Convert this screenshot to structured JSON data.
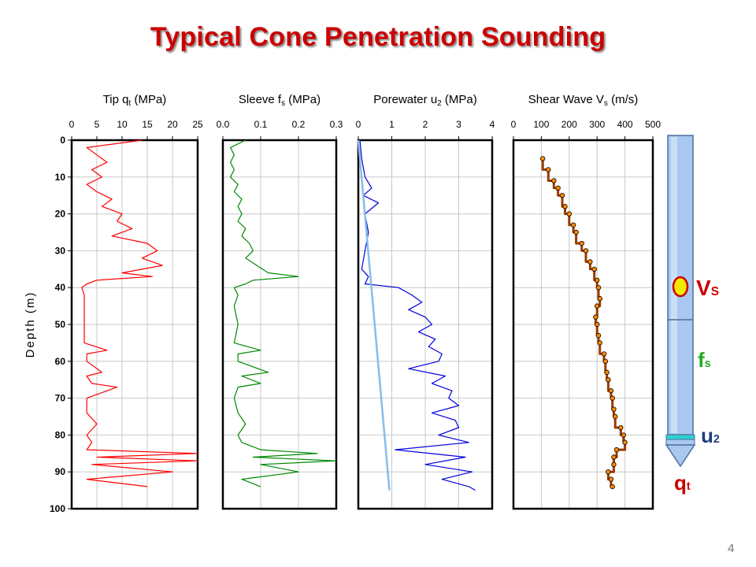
{
  "title": "Typical Cone Penetration Sounding",
  "page_number": "4",
  "cone_labels": {
    "vs": {
      "main": "V",
      "sub": "S"
    },
    "fs": {
      "main": "f",
      "sub": "s"
    },
    "u2": {
      "main": "u",
      "sub": "2"
    },
    "qt": {
      "main": "q",
      "sub": "t"
    }
  },
  "colors": {
    "title": "#cc0000",
    "tip": "#ff0000",
    "sleeve": "#008800",
    "porewater": "#0000dd",
    "hydrostatic": "#87bde8",
    "shear_wave_line": "#9a3a00",
    "shear_wave_marker": "#ff8800",
    "cone_body": "#a9c8ef",
    "cone_sensor": "#f2ea00"
  },
  "chart_data": [
    {
      "type": "line",
      "title": "",
      "xlabel": "Tip q_t (MPa)",
      "xlabel_main": "Tip q",
      "xlabel_sub": "t",
      "xlabel_tail": " (MPa)",
      "ylabel": "Depth (m)",
      "xlim": [
        0,
        25
      ],
      "ylim": [
        0,
        100
      ],
      "x_ticks": [
        "0",
        "5",
        "10",
        "15",
        "20",
        "25"
      ],
      "y_ticks": [
        "0",
        "10",
        "20",
        "30",
        "40",
        "50",
        "60",
        "70",
        "80",
        "90",
        "100"
      ],
      "grid": true,
      "series": [
        {
          "depth": [
            0,
            2,
            4,
            6,
            8,
            10,
            12,
            14,
            16,
            18,
            20,
            22,
            24,
            26,
            28,
            30,
            32,
            34,
            36,
            37,
            38,
            39,
            40,
            42,
            45,
            50,
            55,
            57,
            58,
            60,
            63,
            64,
            66,
            67,
            70,
            74,
            77,
            80,
            82,
            84,
            85,
            86,
            87,
            88,
            90,
            92,
            94
          ],
          "values": [
            14,
            3,
            5,
            7,
            4,
            6,
            3,
            5,
            8,
            6,
            10,
            9,
            12,
            8,
            15,
            17,
            14,
            18,
            10,
            16,
            5,
            3,
            2,
            2.5,
            2.5,
            2.5,
            2.5,
            7,
            3,
            3,
            6,
            3,
            4,
            9,
            3,
            3,
            5,
            3,
            4,
            3,
            25,
            5,
            25,
            4,
            20,
            3,
            15
          ]
        }
      ]
    },
    {
      "type": "line",
      "title": "",
      "xlabel": "Sleeve f_s (MPa)",
      "xlabel_main": "Sleeve f",
      "xlabel_sub": "s",
      "xlabel_tail": " (MPa)",
      "xlim": [
        0,
        0.3
      ],
      "ylim": [
        0,
        100
      ],
      "x_ticks": [
        "0.0",
        "0.1",
        "0.2",
        "0.3"
      ],
      "grid": true,
      "series": [
        {
          "depth": [
            0,
            2,
            4,
            6,
            8,
            10,
            12,
            14,
            16,
            18,
            20,
            22,
            24,
            26,
            28,
            30,
            32,
            34,
            36,
            37,
            38,
            39,
            40,
            42,
            45,
            50,
            55,
            57,
            58,
            60,
            63,
            64,
            66,
            67,
            70,
            74,
            77,
            80,
            82,
            84,
            85,
            86,
            87,
            88,
            90,
            92,
            94
          ],
          "values": [
            0.06,
            0.02,
            0.03,
            0.02,
            0.03,
            0.02,
            0.04,
            0.03,
            0.05,
            0.04,
            0.05,
            0.04,
            0.06,
            0.05,
            0.07,
            0.08,
            0.06,
            0.09,
            0.12,
            0.2,
            0.08,
            0.06,
            0.03,
            0.04,
            0.03,
            0.04,
            0.03,
            0.1,
            0.04,
            0.04,
            0.12,
            0.05,
            0.1,
            0.04,
            0.03,
            0.04,
            0.06,
            0.04,
            0.05,
            0.1,
            0.25,
            0.08,
            0.3,
            0.1,
            0.2,
            0.05,
            0.1
          ]
        }
      ]
    },
    {
      "type": "line",
      "title": "",
      "xlabel": "Porewater u_2 (MPa)",
      "xlabel_main": "Porewater u",
      "xlabel_sub": "2",
      "xlabel_tail": " (MPa)",
      "xlim": [
        0,
        4
      ],
      "ylim": [
        0,
        100
      ],
      "x_ticks": [
        "0",
        "1",
        "2",
        "3",
        "4"
      ],
      "grid": true,
      "series": [
        {
          "name": "u2",
          "depth": [
            0,
            5,
            10,
            13,
            15,
            17,
            20,
            25,
            30,
            35,
            37,
            39,
            40,
            42,
            44,
            46,
            48,
            50,
            52,
            54,
            56,
            58,
            60,
            62,
            64,
            66,
            68,
            70,
            72,
            74,
            76,
            78,
            80,
            82,
            84,
            86,
            88,
            90,
            92,
            94,
            95
          ],
          "values": [
            0.05,
            0.1,
            0.2,
            0.4,
            0.15,
            0.6,
            0.2,
            0.3,
            0.2,
            0.1,
            0.3,
            0.2,
            1.2,
            1.6,
            1.9,
            1.5,
            2.0,
            2.2,
            1.8,
            2.3,
            2.1,
            2.5,
            2.4,
            1.5,
            2.6,
            2.2,
            2.8,
            2.7,
            3.0,
            2.2,
            2.9,
            3.0,
            2.4,
            3.3,
            1.1,
            3.2,
            2.0,
            3.4,
            2.5,
            3.3,
            3.5
          ]
        },
        {
          "name": "hydrostatic",
          "depth": [
            0,
            95
          ],
          "values": [
            0,
            0.93
          ]
        }
      ]
    },
    {
      "type": "line",
      "title": "",
      "xlabel": "Shear Wave V_s (m/s)",
      "xlabel_main": "Shear Wave V",
      "xlabel_sub": "s",
      "xlabel_tail": " (m/s)",
      "xlim": [
        0,
        500
      ],
      "ylim": [
        0,
        100
      ],
      "x_ticks": [
        "0",
        "100",
        "200",
        "300",
        "400",
        "500"
      ],
      "grid": true,
      "series": [
        {
          "depth": [
            5,
            8,
            11,
            13,
            15,
            18,
            20,
            23,
            25,
            28,
            30,
            33,
            35,
            38,
            40,
            43,
            45,
            48,
            50,
            53,
            55,
            58,
            60,
            63,
            65,
            68,
            70,
            73,
            75,
            78,
            80,
            82,
            84,
            86,
            88,
            90,
            92,
            94
          ],
          "values": [
            105,
            125,
            145,
            160,
            175,
            185,
            200,
            215,
            225,
            245,
            260,
            275,
            290,
            300,
            305,
            310,
            300,
            295,
            300,
            305,
            310,
            325,
            330,
            335,
            340,
            350,
            355,
            360,
            365,
            385,
            395,
            400,
            370,
            360,
            360,
            340,
            350,
            355
          ]
        }
      ]
    }
  ]
}
